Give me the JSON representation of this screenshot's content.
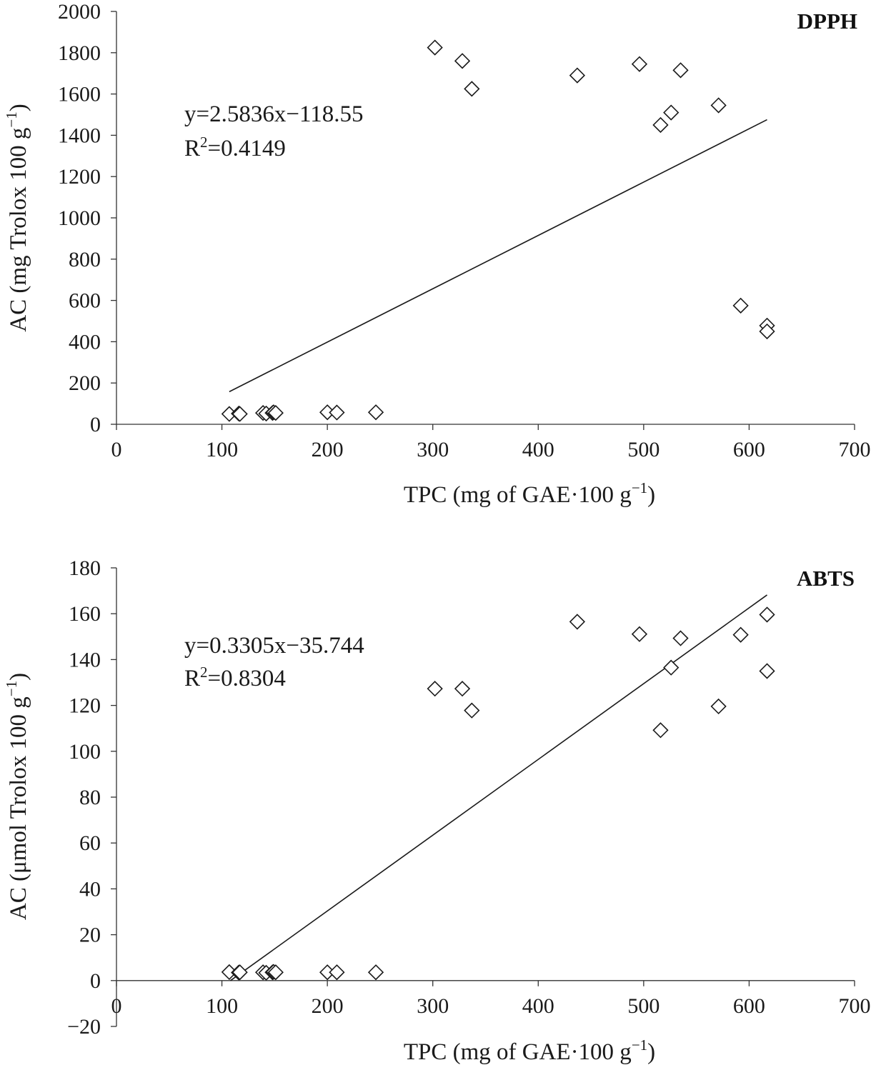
{
  "chart_data": [
    {
      "type": "scatter",
      "title": "DPPH",
      "xlabel_main": "TPC (mg of GAE·100 g",
      "xlabel_sup": "−1",
      "xlabel_end": ")",
      "ylabel_main": "AC (mg Trolox 100 g",
      "ylabel_sup": "−1",
      "ylabel_end": ")",
      "xlim": [
        0,
        700
      ],
      "ylim": [
        0,
        2000
      ],
      "x_ticks": [
        0,
        100,
        200,
        300,
        400,
        500,
        600,
        700
      ],
      "y_ticks": [
        0,
        200,
        400,
        600,
        800,
        1000,
        1200,
        1400,
        1600,
        1800,
        2000
      ],
      "x_tick_labels": [
        "0",
        "100",
        "200",
        "300",
        "400",
        "500",
        "600",
        "700"
      ],
      "y_tick_labels": [
        "0",
        "200",
        "400",
        "600",
        "800",
        "1000",
        "1200",
        "1400",
        "1600",
        "1800",
        "2000"
      ],
      "points": [
        {
          "x": 107,
          "y": 50
        },
        {
          "x": 116,
          "y": 52
        },
        {
          "x": 117,
          "y": 50
        },
        {
          "x": 139,
          "y": 55
        },
        {
          "x": 142,
          "y": 52
        },
        {
          "x": 148,
          "y": 55
        },
        {
          "x": 149,
          "y": 58
        },
        {
          "x": 151,
          "y": 55
        },
        {
          "x": 200,
          "y": 58
        },
        {
          "x": 209,
          "y": 57
        },
        {
          "x": 246,
          "y": 58
        },
        {
          "x": 302,
          "y": 1825
        },
        {
          "x": 328,
          "y": 1760
        },
        {
          "x": 337,
          "y": 1625
        },
        {
          "x": 437,
          "y": 1690
        },
        {
          "x": 496,
          "y": 1745
        },
        {
          "x": 516,
          "y": 1450
        },
        {
          "x": 526,
          "y": 1510
        },
        {
          "x": 535,
          "y": 1715
        },
        {
          "x": 571,
          "y": 1545
        },
        {
          "x": 592,
          "y": 575
        },
        {
          "x": 617,
          "y": 478
        },
        {
          "x": 617,
          "y": 450
        }
      ],
      "trendline": {
        "slope": 2.5836,
        "intercept": -118.55,
        "x_range": [
          107,
          617
        ]
      },
      "equation": "y=2.5836x−118.55",
      "r2_prefix": "R",
      "r2_sup": "2",
      "r2_value": "=0.4149"
    },
    {
      "type": "scatter",
      "title": "ABTS",
      "xlabel_main": "TPC (mg of GAE·100 g",
      "xlabel_sup": "−1",
      "xlabel_end": ")",
      "ylabel_main": "AC (μmol Trolox 100 g",
      "ylabel_sup": "−1",
      "ylabel_end": ")",
      "xlim": [
        0,
        700
      ],
      "ylim": [
        -20,
        180
      ],
      "x_ticks": [
        0,
        100,
        200,
        300,
        400,
        500,
        600,
        700
      ],
      "y_ticks": [
        -20,
        0,
        20,
        40,
        60,
        80,
        100,
        120,
        140,
        160,
        180
      ],
      "x_tick_labels": [
        "0",
        "100",
        "200",
        "300",
        "400",
        "500",
        "600",
        "700"
      ],
      "y_tick_labels": [
        "−20",
        "0",
        "20",
        "40",
        "60",
        "80",
        "100",
        "120",
        "140",
        "160",
        "180"
      ],
      "points": [
        {
          "x": 107,
          "y": 3.7
        },
        {
          "x": 116,
          "y": 3.5
        },
        {
          "x": 117,
          "y": 3.6
        },
        {
          "x": 139,
          "y": 3.6
        },
        {
          "x": 142,
          "y": 3.4
        },
        {
          "x": 148,
          "y": 3.6
        },
        {
          "x": 149,
          "y": 3.8
        },
        {
          "x": 151,
          "y": 3.6
        },
        {
          "x": 200,
          "y": 3.6
        },
        {
          "x": 209,
          "y": 3.6
        },
        {
          "x": 246,
          "y": 3.6
        },
        {
          "x": 302,
          "y": 127.3
        },
        {
          "x": 328,
          "y": 127.3
        },
        {
          "x": 337,
          "y": 117.8
        },
        {
          "x": 437,
          "y": 156.5
        },
        {
          "x": 496,
          "y": 151.1
        },
        {
          "x": 516,
          "y": 109.2
        },
        {
          "x": 526,
          "y": 136.5
        },
        {
          "x": 535,
          "y": 149.3
        },
        {
          "x": 571,
          "y": 119.6
        },
        {
          "x": 592,
          "y": 150.8
        },
        {
          "x": 617,
          "y": 159.6
        },
        {
          "x": 617,
          "y": 135
        }
      ],
      "trendline": {
        "slope": 0.3305,
        "intercept": -35.744,
        "x_range": [
          108,
          617
        ]
      },
      "equation": "y=0.3305x−35.744",
      "r2_prefix": "R",
      "r2_sup": "2",
      "r2_value": "=0.8304"
    }
  ]
}
